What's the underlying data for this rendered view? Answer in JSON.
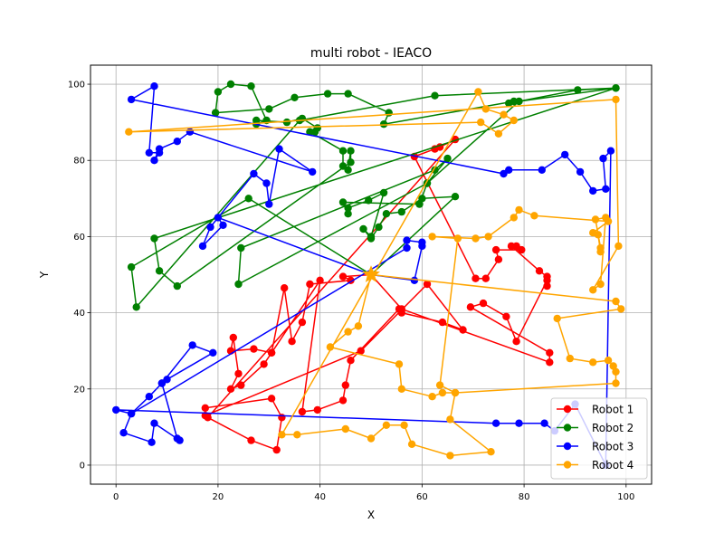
{
  "chart_data": {
    "type": "line",
    "title": "multi robot - IEACO",
    "xlabel": "X",
    "ylabel": "Y",
    "xlim": [
      -5,
      105
    ],
    "ylim": [
      -5,
      105
    ],
    "xticks": [
      "0",
      "20",
      "40",
      "60",
      "80",
      "100"
    ],
    "yticks": [
      "0",
      "20",
      "40",
      "60",
      "80",
      "100"
    ],
    "grid": true,
    "legend_position": "bottom-right",
    "depot": [
      50,
      50
    ],
    "series": [
      {
        "name": "Robot 1",
        "color": "#ff0000",
        "points": [
          [
            50,
            50
          ],
          [
            44.5,
            49.5
          ],
          [
            46,
            48.5
          ],
          [
            38,
            47.5
          ],
          [
            36.5,
            37.5
          ],
          [
            34.5,
            32.5
          ],
          [
            33,
            46.5
          ],
          [
            30.5,
            29.5
          ],
          [
            29,
            26.5
          ],
          [
            24.5,
            21
          ],
          [
            22.5,
            20
          ],
          [
            24,
            24
          ],
          [
            23,
            33.5
          ],
          [
            22.5,
            30
          ],
          [
            27,
            30.5
          ],
          [
            30.5,
            29.5
          ],
          [
            40,
            48.5
          ],
          [
            36.5,
            14
          ],
          [
            39.5,
            14.5
          ],
          [
            44.5,
            17
          ],
          [
            45,
            21
          ],
          [
            46,
            27.5
          ],
          [
            55.5,
            41
          ],
          [
            56,
            40
          ],
          [
            64,
            37.5
          ],
          [
            68,
            35.5
          ],
          [
            61,
            47.5
          ],
          [
            48,
            30
          ],
          [
            17.5,
            13
          ],
          [
            17.5,
            15
          ],
          [
            30.5,
            17.5
          ],
          [
            32.5,
            12.5
          ],
          [
            31.5,
            4
          ],
          [
            26.5,
            6.5
          ],
          [
            18,
            12.5
          ],
          [
            66.5,
            85.5
          ],
          [
            63.5,
            83.5
          ],
          [
            62.5,
            83
          ],
          [
            58.5,
            81
          ],
          [
            70.5,
            49
          ],
          [
            72.5,
            49
          ],
          [
            75,
            54
          ],
          [
            74.5,
            56.5
          ],
          [
            79.5,
            56.5
          ],
          [
            78.5,
            57.5
          ],
          [
            77.5,
            57.5
          ],
          [
            83,
            51
          ],
          [
            84.5,
            49.5
          ],
          [
            84.5,
            47
          ],
          [
            84.5,
            48.5
          ],
          [
            78.5,
            32.5
          ],
          [
            76.5,
            39
          ],
          [
            72,
            42.5
          ],
          [
            69.5,
            41.5
          ],
          [
            85,
            29.5
          ],
          [
            85,
            27
          ],
          [
            56,
            41
          ],
          [
            50,
            50
          ]
        ]
      },
      {
        "name": "Robot 2",
        "color": "#008000",
        "points": [
          [
            50,
            50
          ],
          [
            66.5,
            70.5
          ],
          [
            60,
            70
          ],
          [
            56,
            66.5
          ],
          [
            53,
            66
          ],
          [
            51.5,
            62.5
          ],
          [
            50,
            59.5
          ],
          [
            48.5,
            62
          ],
          [
            50,
            60
          ],
          [
            52.5,
            71.5
          ],
          [
            49.5,
            69.5
          ],
          [
            45.5,
            67.5
          ],
          [
            45.5,
            66
          ],
          [
            44.5,
            69
          ],
          [
            59.5,
            68.5
          ],
          [
            61,
            74
          ],
          [
            65,
            80.5
          ],
          [
            62.5,
            77.5
          ],
          [
            24.5,
            57
          ],
          [
            24,
            47.5
          ],
          [
            61,
            74
          ],
          [
            79,
            95.5
          ],
          [
            98,
            99
          ],
          [
            90.5,
            98.5
          ],
          [
            77,
            95
          ],
          [
            78,
            95.5
          ],
          [
            52.5,
            89.5
          ],
          [
            53.5,
            92.5
          ],
          [
            45.5,
            97.5
          ],
          [
            41.5,
            97.5
          ],
          [
            35,
            96.5
          ],
          [
            30,
            93.5
          ],
          [
            19.5,
            92.5
          ],
          [
            20,
            98
          ],
          [
            22.5,
            100
          ],
          [
            26.5,
            99.5
          ],
          [
            29.5,
            90.5
          ],
          [
            27.5,
            89.5
          ],
          [
            27.5,
            90.5
          ],
          [
            33.5,
            90
          ],
          [
            36.5,
            91
          ],
          [
            39.5,
            88.5
          ],
          [
            39,
            87.5
          ],
          [
            38,
            87.5
          ],
          [
            44.5,
            82.5
          ],
          [
            44.5,
            78.5
          ],
          [
            45.5,
            77.5
          ],
          [
            46,
            82.5
          ],
          [
            46,
            79.5
          ],
          [
            12,
            47
          ],
          [
            8.5,
            51
          ],
          [
            7.5,
            59.5
          ],
          [
            98,
            99
          ],
          [
            62.5,
            97
          ],
          [
            36,
            90.5
          ],
          [
            4,
            41.5
          ],
          [
            3,
            52
          ],
          [
            26,
            70
          ],
          [
            50,
            50
          ]
        ]
      },
      {
        "name": "Robot 3",
        "color": "#0000ff",
        "points": [
          [
            50,
            50
          ],
          [
            20,
            65
          ],
          [
            21,
            63
          ],
          [
            17,
            57.5
          ],
          [
            18.5,
            62.5
          ],
          [
            27,
            76.5
          ],
          [
            29.5,
            74
          ],
          [
            30,
            68.5
          ],
          [
            32,
            83
          ],
          [
            38.5,
            77
          ],
          [
            14.5,
            87.5
          ],
          [
            12,
            85
          ],
          [
            8.5,
            83
          ],
          [
            7.5,
            80
          ],
          [
            8.5,
            82
          ],
          [
            6.5,
            82
          ],
          [
            7.5,
            99.5
          ],
          [
            3,
            96
          ],
          [
            76,
            76.5
          ],
          [
            77,
            77.5
          ],
          [
            83.5,
            77.5
          ],
          [
            88,
            81.5
          ],
          [
            91,
            77
          ],
          [
            93.5,
            72
          ],
          [
            96,
            72.5
          ],
          [
            95.5,
            80.5
          ],
          [
            97,
            82.5
          ],
          [
            96,
            0
          ],
          [
            90,
            16
          ],
          [
            86,
            9
          ],
          [
            84,
            11
          ],
          [
            79,
            11
          ],
          [
            74.5,
            11
          ],
          [
            0,
            14.5
          ],
          [
            3,
            13.5
          ],
          [
            6.5,
            18
          ],
          [
            9,
            21.5
          ],
          [
            10,
            22.5
          ],
          [
            19,
            29.5
          ],
          [
            15,
            31.5
          ],
          [
            9,
            21.5
          ],
          [
            12,
            7
          ],
          [
            12.5,
            6.5
          ],
          [
            7.5,
            11
          ],
          [
            7,
            6
          ],
          [
            1.5,
            8.5
          ],
          [
            3,
            13.5
          ],
          [
            57,
            57
          ],
          [
            57,
            59
          ],
          [
            60,
            58.5
          ],
          [
            60,
            57.5
          ],
          [
            58.5,
            48.5
          ],
          [
            50,
            50
          ]
        ]
      },
      {
        "name": "Robot 4",
        "color": "#ffa500",
        "points": [
          [
            50,
            50
          ],
          [
            47.5,
            36.5
          ],
          [
            45.5,
            35
          ],
          [
            42,
            31
          ],
          [
            55.5,
            26.5
          ],
          [
            56,
            20
          ],
          [
            62,
            18
          ],
          [
            64,
            19
          ],
          [
            66.5,
            19
          ],
          [
            65.5,
            12
          ],
          [
            73.5,
            3.5
          ],
          [
            65.5,
            2.5
          ],
          [
            58,
            5.5
          ],
          [
            56.5,
            10.5
          ],
          [
            53,
            10.5
          ],
          [
            50,
            7
          ],
          [
            45,
            9.5
          ],
          [
            35.5,
            8
          ],
          [
            32.5,
            8
          ],
          [
            71,
            98
          ],
          [
            72.5,
            93.5
          ],
          [
            76,
            92
          ],
          [
            78,
            90.5
          ],
          [
            75,
            87
          ],
          [
            71.5,
            90
          ],
          [
            2.5,
            87.5
          ],
          [
            98,
            96
          ],
          [
            98.5,
            57.5
          ],
          [
            93.5,
            46
          ],
          [
            95,
            47.5
          ],
          [
            96,
            65
          ],
          [
            94,
            64.5
          ],
          [
            95,
            57
          ],
          [
            95,
            56
          ],
          [
            94.5,
            60.5
          ],
          [
            93.5,
            61
          ],
          [
            96.5,
            64
          ],
          [
            82,
            65.5
          ],
          [
            79,
            67
          ],
          [
            78,
            65
          ],
          [
            73,
            60
          ],
          [
            70.5,
            59.5
          ],
          [
            62,
            60
          ],
          [
            67,
            59.5
          ],
          [
            63.5,
            21
          ],
          [
            66.5,
            19
          ],
          [
            98,
            21.5
          ],
          [
            98,
            24.5
          ],
          [
            97.5,
            26
          ],
          [
            96.5,
            27.5
          ],
          [
            93.5,
            27
          ],
          [
            89,
            28
          ],
          [
            86.5,
            38.5
          ],
          [
            99,
            41
          ],
          [
            98,
            43
          ],
          [
            50,
            50
          ]
        ]
      }
    ]
  }
}
